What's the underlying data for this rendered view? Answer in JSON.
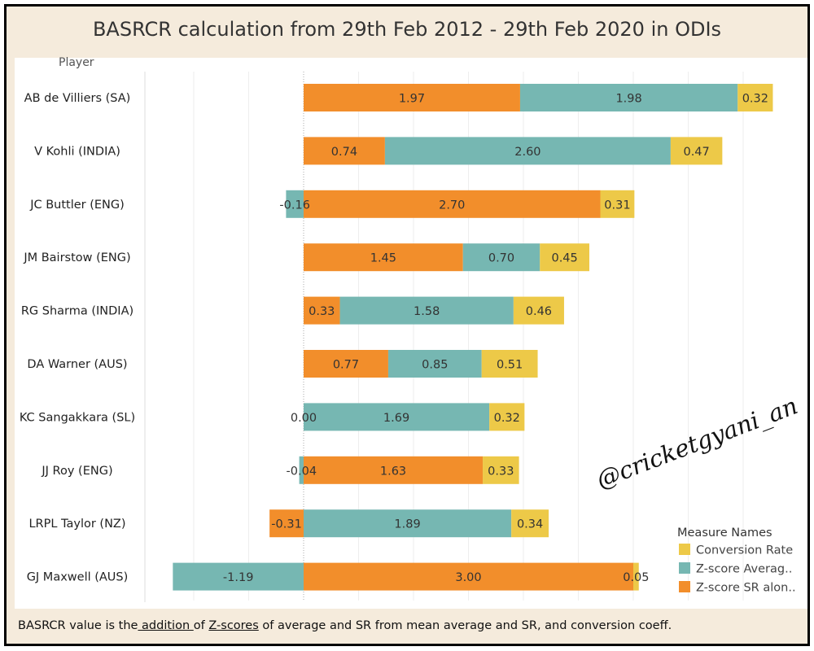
{
  "chart_data": {
    "type": "bar",
    "orientation": "horizontal",
    "stacked": true,
    "title": "BASRCR calculation from 29th Feb 2012 - 29th Feb 2020 in ODIs",
    "ylabel": "Player",
    "categories": [
      "AB de Villiers (SA)",
      "V Kohli (INDIA)",
      "JC Buttler (ENG)",
      "JM Bairstow (ENG)",
      "RG Sharma (INDIA)",
      "DA Warner (AUS)",
      "KC Sangakkara (SL)",
      "JJ Roy (ENG)",
      "LRPL Taylor (NZ)",
      "GJ Maxwell (AUS)"
    ],
    "series": [
      {
        "name": "Z-score SR alon..",
        "color": "#f28e2b",
        "values": [
          1.97,
          0.74,
          2.7,
          1.45,
          0.33,
          0.77,
          0.0,
          1.63,
          -0.31,
          3.0
        ],
        "labels": [
          "1.97",
          "0.74",
          "2.70",
          "1.45",
          "0.33",
          "0.77",
          "0.00",
          "1.63",
          "-0.31",
          "3.00"
        ]
      },
      {
        "name": "Z-score Averag..",
        "color": "#76b7b2",
        "values": [
          1.98,
          2.6,
          -0.16,
          0.7,
          1.58,
          0.85,
          1.69,
          -0.04,
          1.89,
          -1.19
        ],
        "labels": [
          "1.98",
          "2.60",
          "-0.16",
          "0.70",
          "1.58",
          "0.85",
          "1.69",
          "-0.04",
          "1.89",
          "-1.19"
        ]
      },
      {
        "name": "Conversion Rate",
        "color": "#edc948",
        "values": [
          0.32,
          0.47,
          0.31,
          0.45,
          0.46,
          0.51,
          0.32,
          0.33,
          0.34,
          0.05
        ],
        "labels": [
          "0.32",
          "0.47",
          "0.31",
          "0.45",
          "0.46",
          "0.51",
          "0.32",
          "0.33",
          "0.34",
          "0.05"
        ]
      }
    ],
    "legend": {
      "title": "Measure Names",
      "placement": "bottom-right",
      "entries": [
        "Conversion Rate",
        "Z-score Averag..",
        "Z-score SR alon.."
      ]
    },
    "xlim": [
      -1.2,
      4.5
    ],
    "grid": true
  },
  "footer": {
    "part1": "BASRCR value is the",
    "part2": " addition ",
    "part3": "of ",
    "part4": "Z-scores",
    "part5": " of average and SR from mean average and SR, and conversion coeff."
  },
  "watermark": "@cricketgyani_an"
}
